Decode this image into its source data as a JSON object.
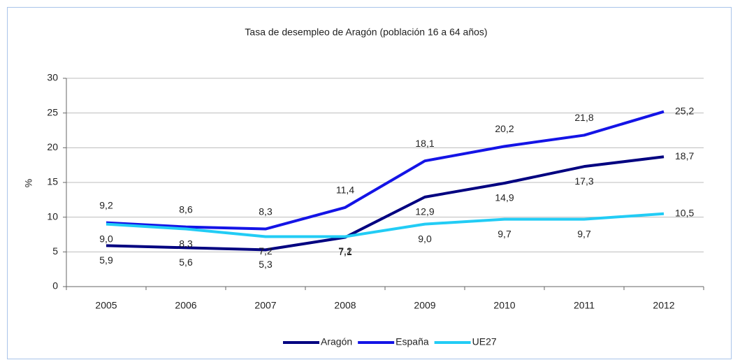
{
  "chart_data": {
    "type": "line",
    "title": "Tasa de desempleo de Aragón (población 16 a 64 años)",
    "y_label": "%",
    "categories": [
      "2005",
      "2006",
      "2007",
      "2008",
      "2009",
      "2010",
      "2011",
      "2012"
    ],
    "ylim": [
      0,
      30
    ],
    "yticks": [
      0,
      5,
      10,
      15,
      20,
      25,
      30
    ],
    "grid": true,
    "legend": "bottom",
    "series": [
      {
        "name": "Aragón",
        "color": "#000080",
        "values": [
          5.9,
          5.6,
          5.3,
          7.1,
          12.9,
          14.9,
          17.3,
          18.7
        ],
        "value_labels": [
          "5,9",
          "5,6",
          "5,3",
          "7,1",
          "12,9",
          "14,9",
          "17,3",
          "18,7"
        ]
      },
      {
        "name": "España",
        "color": "#1414e6",
        "values": [
          9.2,
          8.6,
          8.3,
          11.4,
          18.1,
          20.2,
          21.8,
          25.2
        ],
        "value_labels": [
          "9,2",
          "8,6",
          "8,3",
          "11,4",
          "18,1",
          "20,2",
          "21,8",
          "25,2"
        ]
      },
      {
        "name": "UE27",
        "color": "#22ccf5",
        "values": [
          9.0,
          8.3,
          7.2,
          7.2,
          9.0,
          9.7,
          9.7,
          10.5
        ],
        "value_labels": [
          "9,0",
          "8,3",
          "7,2",
          "7,2",
          "9,0",
          "9,7",
          "9,7",
          "10,5"
        ]
      }
    ]
  }
}
